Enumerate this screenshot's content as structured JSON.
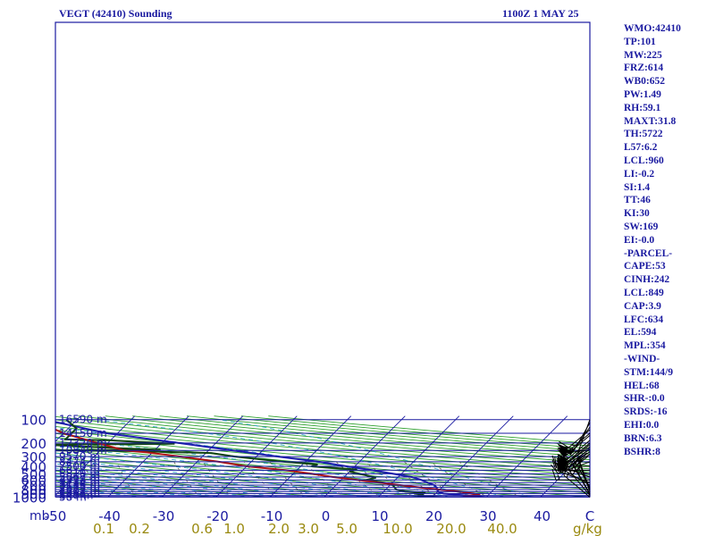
{
  "chart_data": {
    "type": "line",
    "chart_kind": "skew-T log-P sounding",
    "title_left": "VEGT (42410) Sounding",
    "title_right": "1100Z  1 MAY 25",
    "y_scale": "log",
    "y_unit_label": "mb",
    "pressure_levels": [
      100,
      200,
      300,
      400,
      500,
      600,
      700,
      800,
      900,
      1000
    ],
    "heights": [
      {
        "p": 100,
        "label": "16590 m"
      },
      {
        "p": 150,
        "label": "14150 m"
      },
      {
        "p": 200,
        "label": "12320 m"
      },
      {
        "p": 250,
        "label": "10840 m"
      },
      {
        "p": 300,
        "label": "9570 m"
      },
      {
        "p": 350,
        "label": "8474 m"
      },
      {
        "p": 400,
        "label": "7500 m"
      },
      {
        "p": 450,
        "label": "6617 m"
      },
      {
        "p": 500,
        "label": "5810 m"
      },
      {
        "p": 550,
        "label": "5067 m"
      },
      {
        "p": 600,
        "label": "4378 m"
      },
      {
        "p": 650,
        "label": "3734 m"
      },
      {
        "p": 700,
        "label": "3135 m"
      },
      {
        "p": 750,
        "label": "2555 m"
      },
      {
        "p": 800,
        "label": "2012 m"
      },
      {
        "p": 850,
        "label": "1502 m"
      },
      {
        "p": 900,
        "label": "1011 m"
      },
      {
        "p": 950,
        "label": "540 m"
      },
      {
        "p": 1000,
        "label": "58 m"
      }
    ],
    "temperature_ticks": [
      -50,
      -40,
      -30,
      -20,
      -10,
      0,
      10,
      20,
      30,
      40
    ],
    "mixing_ratio_ticks": [
      "0.1",
      "0.2",
      "0.6",
      "1.0",
      "2.0",
      "3.0",
      "5.0",
      "10.0",
      "20.0",
      "40.0"
    ],
    "mixing_ratio_unit": "g/kg",
    "corner_label": "C",
    "series": [
      {
        "role": "temperature",
        "color": "#1d1db0",
        "points": [
          [
            1000,
            30
          ],
          [
            950,
            26
          ],
          [
            900,
            21.5
          ],
          [
            850,
            20
          ],
          [
            800,
            19.6
          ],
          [
            750,
            19
          ],
          [
            700,
            18.2
          ],
          [
            650,
            16.5
          ],
          [
            600,
            14.8
          ],
          [
            550,
            12.5
          ],
          [
            500,
            8.5
          ],
          [
            450,
            4
          ],
          [
            400,
            -1.5
          ],
          [
            350,
            -7.5
          ],
          [
            300,
            -16
          ],
          [
            250,
            -25.5
          ],
          [
            200,
            -37
          ],
          [
            150,
            -52
          ],
          [
            100,
            -66
          ]
        ]
      },
      {
        "role": "dewpoint",
        "color": "#114411",
        "points": [
          [
            1000,
            22
          ],
          [
            980,
            19
          ],
          [
            950,
            17
          ],
          [
            925,
            18
          ],
          [
            900,
            16
          ],
          [
            880,
            18
          ],
          [
            850,
            14
          ],
          [
            800,
            12
          ],
          [
            700,
            10.5
          ],
          [
            650,
            8.5
          ],
          [
            600,
            4.7
          ],
          [
            560,
            6
          ],
          [
            500,
            2.3
          ],
          [
            470,
            0
          ],
          [
            440,
            1
          ],
          [
            400,
            -8
          ],
          [
            380,
            -7.2
          ],
          [
            360,
            -11.5
          ],
          [
            350,
            -14
          ],
          [
            300,
            -24
          ],
          [
            270,
            -29
          ],
          [
            255,
            -43.5
          ],
          [
            250,
            -59
          ],
          [
            245,
            -39
          ],
          [
            233,
            -47.5
          ],
          [
            210,
            -61.5
          ],
          [
            205,
            -37.5
          ],
          [
            185,
            -50
          ],
          [
            180,
            -58.5
          ],
          [
            130,
            -58.5
          ],
          [
            100,
            -62
          ]
        ]
      },
      {
        "role": "parcel",
        "color": "#ad1414",
        "points": [
          [
            960,
            25.5
          ],
          [
            950,
            26.5
          ],
          [
            940,
            28.5
          ],
          [
            900,
            27
          ],
          [
            850,
            24
          ],
          [
            800,
            20
          ],
          [
            750,
            16
          ],
          [
            700,
            12
          ],
          [
            650,
            7.5
          ],
          [
            600,
            3
          ],
          [
            550,
            -2
          ],
          [
            500,
            -6.5
          ],
          [
            450,
            -12
          ],
          [
            400,
            -20
          ],
          [
            350,
            -26
          ],
          [
            300,
            -34
          ],
          [
            270,
            -40
          ],
          [
            265,
            -41
          ],
          [
            255,
            -44
          ],
          [
            250,
            -45.5
          ],
          [
            200,
            -52
          ],
          [
            150,
            -60
          ],
          [
            100,
            -68
          ]
        ]
      }
    ],
    "wind_barbs": [
      {
        "p": 100,
        "dir": 200,
        "kt": 10
      },
      {
        "p": 110,
        "dir": 210,
        "kt": 25
      },
      {
        "p": 125,
        "dir": 215,
        "kt": 55
      },
      {
        "p": 135,
        "dir": 230,
        "kt": 60
      },
      {
        "p": 150,
        "dir": 230,
        "kt": 60
      },
      {
        "p": 160,
        "dir": 230,
        "kt": 60
      },
      {
        "p": 185,
        "dir": 230,
        "kt": 55
      },
      {
        "p": 200,
        "dir": 230,
        "kt": 60
      },
      {
        "p": 210,
        "dir": 230,
        "kt": 55
      },
      {
        "p": 225,
        "dir": 235,
        "kt": 55
      },
      {
        "p": 240,
        "dir": 235,
        "kt": 55
      },
      {
        "p": 260,
        "dir": 235,
        "kt": 55
      },
      {
        "p": 280,
        "dir": 240,
        "kt": 55
      },
      {
        "p": 350,
        "dir": 250,
        "kt": 15
      },
      {
        "p": 400,
        "dir": 270,
        "kt": 15
      },
      {
        "p": 450,
        "dir": 270,
        "kt": 15
      },
      {
        "p": 500,
        "dir": 280,
        "kt": 20
      },
      {
        "p": 550,
        "dir": 290,
        "kt": 20
      },
      {
        "p": 600,
        "dir": 270,
        "kt": 15
      },
      {
        "p": 650,
        "dir": 290,
        "kt": 5
      },
      {
        "p": 700,
        "dir": 300,
        "kt": 5
      },
      {
        "p": 750,
        "dir": 330,
        "kt": 10
      },
      {
        "p": 800,
        "dir": 340,
        "kt": 15
      },
      {
        "p": 850,
        "dir": 340,
        "kt": 20
      },
      {
        "p": 900,
        "dir": 330,
        "kt": 25
      },
      {
        "p": 925,
        "dir": 330,
        "kt": 25
      },
      {
        "p": 950,
        "dir": 320,
        "kt": 25
      },
      {
        "p": 1000,
        "dir": 310,
        "kt": 15
      }
    ],
    "stats": [
      "WMO:42410",
      "TP:101",
      "MW:225",
      "FRZ:614",
      "WB0:652",
      "PW:1.49",
      "RH:59.1",
      "MAXT:31.8",
      "TH:5722",
      "L57:6.2",
      "LCL:960",
      "LI:-0.2",
      "SI:1.4",
      "TT:46",
      "KI:30",
      "SW:169",
      "EI:-0.0",
      "-PARCEL-",
      "CAPE:53",
      "CINH:242",
      "LCL:849",
      "CAP:3.9",
      "LFC:634",
      "EL:594",
      "MPL:354",
      "-WIND-",
      "STM:144/9",
      "HEL:68",
      "SHR-:0.0",
      "SRDS:-16",
      "EHI:0.0",
      "BRN:6.3",
      "BSHR:8"
    ],
    "colors": {
      "frame": "#1a1aa0",
      "isotherm": "#1a1aa0",
      "dry_adiabat": "#2ea02e",
      "moist_adiabat": "#36a8c8",
      "mixing_ratio": "#5a5a3a",
      "tick_text": "#1a1aa0",
      "mixing_text": "#9a8a10"
    }
  }
}
